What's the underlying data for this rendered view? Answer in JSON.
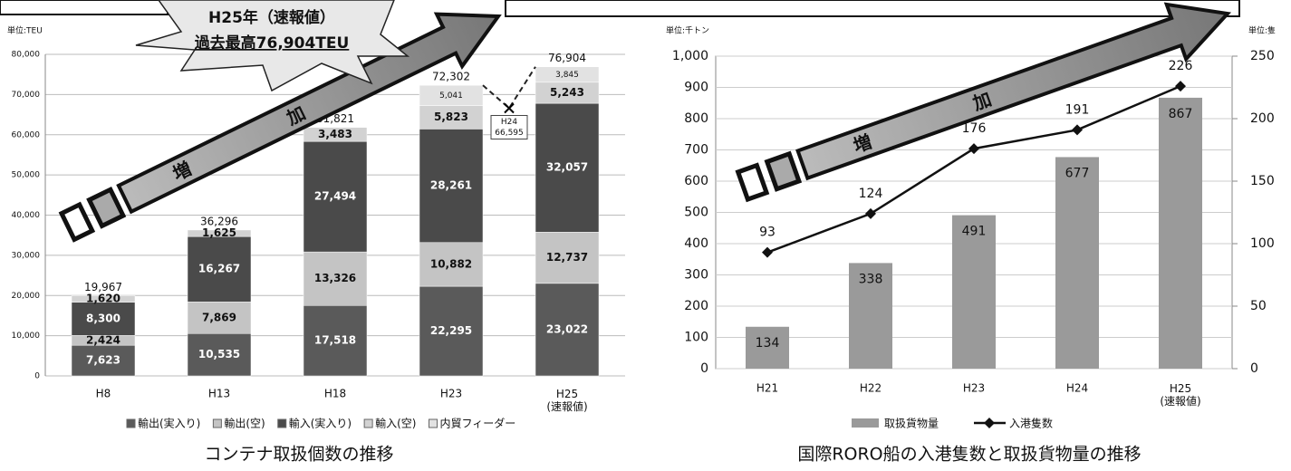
{
  "chart_data": [
    {
      "type": "stacked_bar",
      "title": "コンテナ取扱個数の推移",
      "unit_label": "単位:TEU",
      "categories": [
        "H8",
        "H13",
        "H18",
        "H23",
        "H25(速報値)"
      ],
      "series": [
        {
          "name": "輸出(実入り)",
          "color": "#5a5a5a",
          "values": [
            7623,
            10535,
            17518,
            22295,
            23022
          ],
          "value_labels": [
            "7,623",
            "10,535",
            "17,518",
            "22,295",
            "23,022"
          ]
        },
        {
          "name": "輸出(空)",
          "color": "#c4c4c4",
          "values": [
            2424,
            7869,
            13326,
            10882,
            12737
          ],
          "value_labels": [
            "2,424",
            "7,869",
            "13,326",
            "10,882",
            "12,737"
          ]
        },
        {
          "name": "輸入(実入り)",
          "color": "#4a4a4a",
          "values": [
            8300,
            16267,
            27494,
            28261,
            32057
          ],
          "value_labels": [
            "8,300",
            "16,267",
            "27,494",
            "28,261",
            "32,057"
          ]
        },
        {
          "name": "輸入(空)",
          "color": "#d2d2d2",
          "values": [
            1620,
            1625,
            3483,
            5823,
            5243
          ],
          "value_labels": [
            "1,620",
            "1,625",
            "3,483",
            "5,823",
            "5,243"
          ]
        },
        {
          "name": "内貿フィーダー",
          "color": "#e2e2e2",
          "values": [
            null,
            null,
            null,
            5041,
            3845
          ],
          "value_labels": [
            null,
            null,
            null,
            "5,041",
            "3,845"
          ]
        }
      ],
      "total_labels": [
        "19,967",
        "36,296",
        "61,821",
        "72,302",
        "76,904"
      ],
      "ylim": [
        0,
        80000
      ],
      "yticks": [
        0,
        {
          "value": 10000,
          "label": "10,000"
        },
        {
          "value": 20000,
          "label": "20,000"
        },
        {
          "value": 30000,
          "label": "30,000"
        },
        {
          "value": 40000,
          "label": "40,000"
        },
        {
          "value": 50000,
          "label": "50,000"
        },
        {
          "value": 60000,
          "label": "60,000"
        },
        {
          "value": 70000,
          "label": "70,000"
        },
        {
          "value": 80000,
          "label": "80,000"
        }
      ],
      "grid": true,
      "h24": {
        "label": "H24",
        "value": 66595,
        "value_label": "66,595"
      },
      "callout": [
        "H25年（速報値）",
        "過去最高76,904TEU"
      ],
      "arrow_text": [
        "増",
        "加"
      ]
    },
    {
      "type": "bar_line",
      "title": "国際RORO船の入港隻数と取扱貨物量の推移",
      "unit_label": "単位:千トン",
      "unit_label_y2": "単位:隻",
      "categories": [
        "H21",
        "H22",
        "H23",
        "H24",
        "H25(速報値)"
      ],
      "series": [
        {
          "name": "取扱貨物量",
          "color": "#9a9a9a",
          "values": [
            134,
            338,
            491,
            677,
            867
          ]
        },
        {
          "name": "入港隻数",
          "color": "#111111",
          "axis": "y2",
          "values": [
            93,
            124,
            176,
            191,
            226
          ]
        }
      ],
      "ylim": [
        0,
        1000
      ],
      "yticks": [
        0,
        100,
        200,
        300,
        400,
        500,
        600,
        700,
        800,
        900,
        {
          "value": 1000,
          "label": "1,000"
        }
      ],
      "y2lim": [
        0,
        250
      ],
      "y2ticks": [
        0,
        50,
        100,
        150,
        200,
        250
      ],
      "grid": true,
      "arrow_text": [
        "増",
        "加"
      ]
    }
  ]
}
